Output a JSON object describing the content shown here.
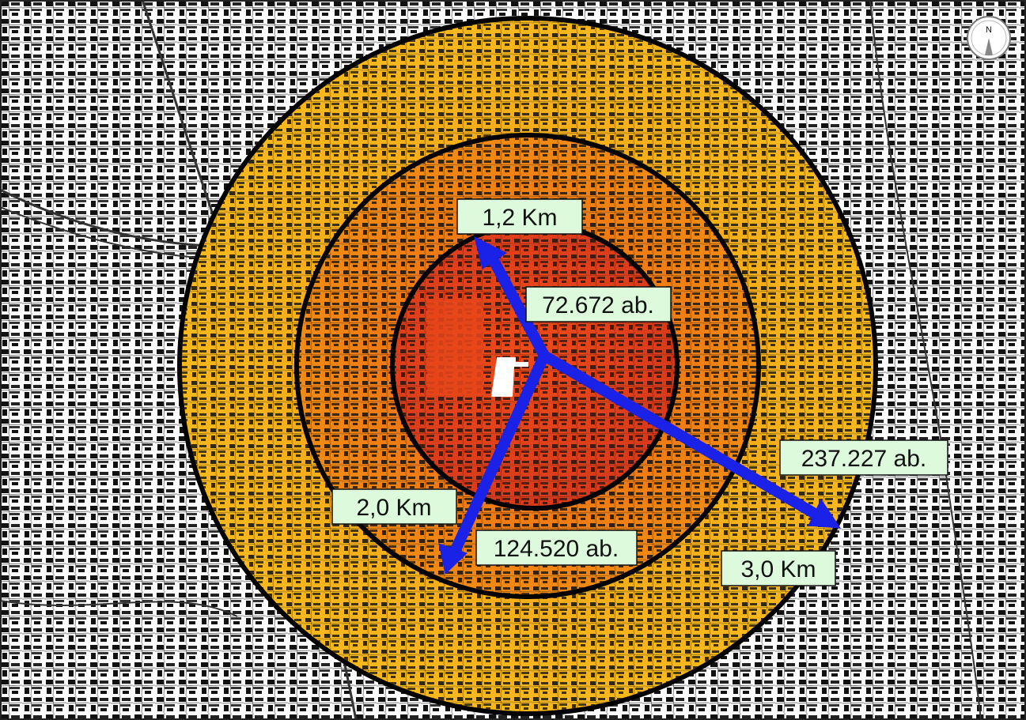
{
  "map": {
    "compass": {
      "icon": "north-arrow-icon",
      "label": "N"
    },
    "site_marker": {
      "icon": "building-icon"
    },
    "colors": {
      "inner_ring": "#e8341c",
      "middle_ring": "#f07a10",
      "outer_ring": "#f6b21a",
      "arrows": "#1a22e8",
      "label_fill": "#ddfadd",
      "ring_stroke": "#000000",
      "site": "#ffffff"
    },
    "rings": [
      {
        "name": "inner",
        "radius_label": "1,2 Km",
        "population_label": "72.672 ab."
      },
      {
        "name": "middle",
        "radius_label": "2,0 Km",
        "population_label": "124.520 ab."
      },
      {
        "name": "outer",
        "radius_label": "3,0 Km",
        "population_label": "237.227 ab."
      }
    ]
  }
}
